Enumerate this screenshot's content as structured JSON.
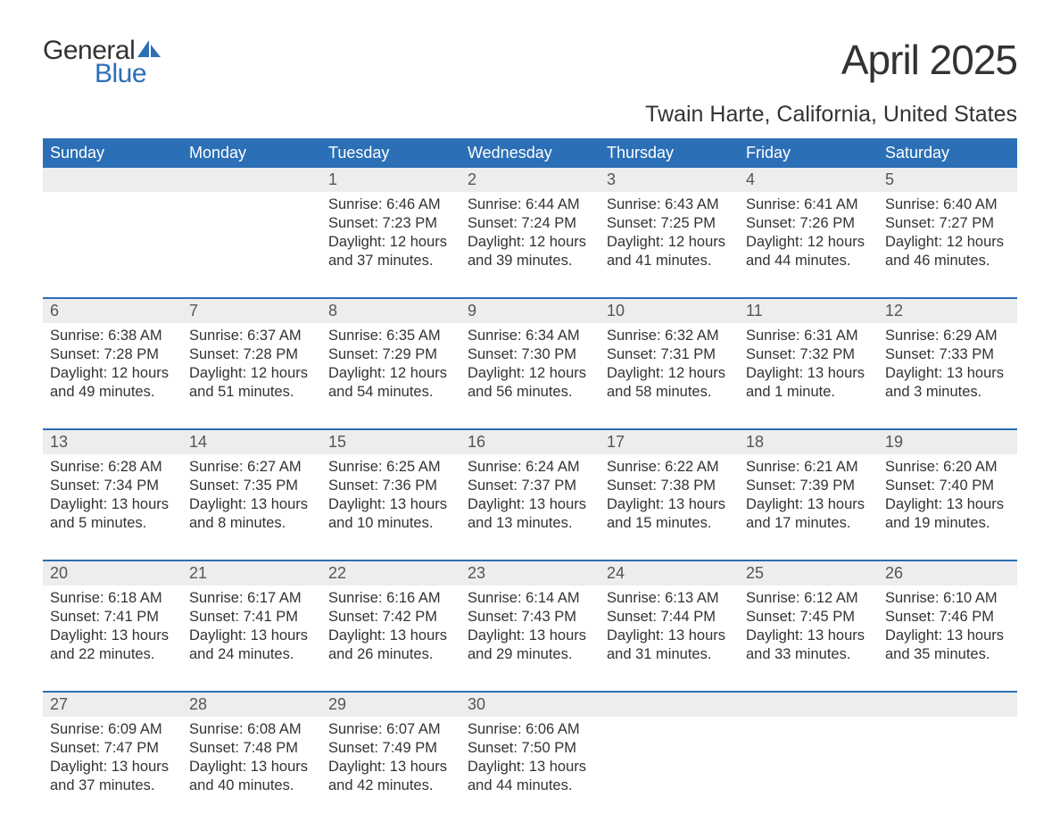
{
  "logo": {
    "text1": "General",
    "text2": "Blue",
    "icon_color": "#2b6fb6"
  },
  "title": "April 2025",
  "location": "Twain Harte, California, United States",
  "colors": {
    "header_bg": "#2b6fb6",
    "header_text": "#ffffff",
    "daynum_bg": "#ededed",
    "text": "#333333",
    "border": "#2b6fb6",
    "background": "#ffffff"
  },
  "day_headers": [
    "Sunday",
    "Monday",
    "Tuesday",
    "Wednesday",
    "Thursday",
    "Friday",
    "Saturday"
  ],
  "weeks": [
    [
      null,
      null,
      {
        "n": "1",
        "sr": "6:46 AM",
        "ss": "7:23 PM",
        "dl": "12 hours and 37 minutes."
      },
      {
        "n": "2",
        "sr": "6:44 AM",
        "ss": "7:24 PM",
        "dl": "12 hours and 39 minutes."
      },
      {
        "n": "3",
        "sr": "6:43 AM",
        "ss": "7:25 PM",
        "dl": "12 hours and 41 minutes."
      },
      {
        "n": "4",
        "sr": "6:41 AM",
        "ss": "7:26 PM",
        "dl": "12 hours and 44 minutes."
      },
      {
        "n": "5",
        "sr": "6:40 AM",
        "ss": "7:27 PM",
        "dl": "12 hours and 46 minutes."
      }
    ],
    [
      {
        "n": "6",
        "sr": "6:38 AM",
        "ss": "7:28 PM",
        "dl": "12 hours and 49 minutes."
      },
      {
        "n": "7",
        "sr": "6:37 AM",
        "ss": "7:28 PM",
        "dl": "12 hours and 51 minutes."
      },
      {
        "n": "8",
        "sr": "6:35 AM",
        "ss": "7:29 PM",
        "dl": "12 hours and 54 minutes."
      },
      {
        "n": "9",
        "sr": "6:34 AM",
        "ss": "7:30 PM",
        "dl": "12 hours and 56 minutes."
      },
      {
        "n": "10",
        "sr": "6:32 AM",
        "ss": "7:31 PM",
        "dl": "12 hours and 58 minutes."
      },
      {
        "n": "11",
        "sr": "6:31 AM",
        "ss": "7:32 PM",
        "dl": "13 hours and 1 minute."
      },
      {
        "n": "12",
        "sr": "6:29 AM",
        "ss": "7:33 PM",
        "dl": "13 hours and 3 minutes."
      }
    ],
    [
      {
        "n": "13",
        "sr": "6:28 AM",
        "ss": "7:34 PM",
        "dl": "13 hours and 5 minutes."
      },
      {
        "n": "14",
        "sr": "6:27 AM",
        "ss": "7:35 PM",
        "dl": "13 hours and 8 minutes."
      },
      {
        "n": "15",
        "sr": "6:25 AM",
        "ss": "7:36 PM",
        "dl": "13 hours and 10 minutes."
      },
      {
        "n": "16",
        "sr": "6:24 AM",
        "ss": "7:37 PM",
        "dl": "13 hours and 13 minutes."
      },
      {
        "n": "17",
        "sr": "6:22 AM",
        "ss": "7:38 PM",
        "dl": "13 hours and 15 minutes."
      },
      {
        "n": "18",
        "sr": "6:21 AM",
        "ss": "7:39 PM",
        "dl": "13 hours and 17 minutes."
      },
      {
        "n": "19",
        "sr": "6:20 AM",
        "ss": "7:40 PM",
        "dl": "13 hours and 19 minutes."
      }
    ],
    [
      {
        "n": "20",
        "sr": "6:18 AM",
        "ss": "7:41 PM",
        "dl": "13 hours and 22 minutes."
      },
      {
        "n": "21",
        "sr": "6:17 AM",
        "ss": "7:41 PM",
        "dl": "13 hours and 24 minutes."
      },
      {
        "n": "22",
        "sr": "6:16 AM",
        "ss": "7:42 PM",
        "dl": "13 hours and 26 minutes."
      },
      {
        "n": "23",
        "sr": "6:14 AM",
        "ss": "7:43 PM",
        "dl": "13 hours and 29 minutes."
      },
      {
        "n": "24",
        "sr": "6:13 AM",
        "ss": "7:44 PM",
        "dl": "13 hours and 31 minutes."
      },
      {
        "n": "25",
        "sr": "6:12 AM",
        "ss": "7:45 PM",
        "dl": "13 hours and 33 minutes."
      },
      {
        "n": "26",
        "sr": "6:10 AM",
        "ss": "7:46 PM",
        "dl": "13 hours and 35 minutes."
      }
    ],
    [
      {
        "n": "27",
        "sr": "6:09 AM",
        "ss": "7:47 PM",
        "dl": "13 hours and 37 minutes."
      },
      {
        "n": "28",
        "sr": "6:08 AM",
        "ss": "7:48 PM",
        "dl": "13 hours and 40 minutes."
      },
      {
        "n": "29",
        "sr": "6:07 AM",
        "ss": "7:49 PM",
        "dl": "13 hours and 42 minutes."
      },
      {
        "n": "30",
        "sr": "6:06 AM",
        "ss": "7:50 PM",
        "dl": "13 hours and 44 minutes."
      },
      null,
      null,
      null
    ]
  ],
  "labels": {
    "sunrise": "Sunrise: ",
    "sunset": "Sunset: ",
    "daylight": "Daylight: "
  }
}
